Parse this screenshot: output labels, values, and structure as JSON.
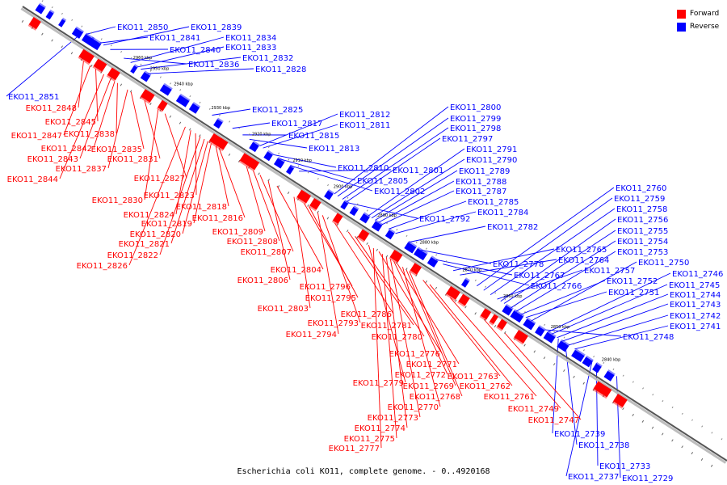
{
  "caption": "Escherichia coli KO11, complete genome. - 0..4920168",
  "legend": {
    "forward_label": "Forward",
    "reverse_label": "Reverse",
    "forward_color": "#ff0000",
    "reverse_color": "#0000ff"
  },
  "ticks": [
    "2960 kbp",
    "2950 kbp",
    "2940 kbp",
    "2930 kbp",
    "2920 kbp",
    "2910 kbp",
    "2900 kbp",
    "2890 kbp",
    "2880 kbp",
    "2870 kbp",
    "2860 kbp",
    "2850 kbp",
    "2840 kbp"
  ],
  "reverse_genes": [
    "EKO11_2851",
    "EKO11_2850",
    "EKO11_2841",
    "EKO11_2840",
    "EKO11_2839",
    "EKO11_2836",
    "EKO11_2834",
    "EKO11_2833",
    "EKO11_2832",
    "EKO11_2828",
    "EKO11_2825",
    "EKO11_2817",
    "EKO11_2815",
    "EKO11_2813",
    "EKO11_2812",
    "EKO11_2811",
    "EKO11_2810",
    "EKO11_2805",
    "EKO11_2802",
    "EKO11_2801",
    "EKO11_2800",
    "EKO11_2799",
    "EKO11_2798",
    "EKO11_2797",
    "EKO11_2792",
    "EKO11_2791",
    "EKO11_2790",
    "EKO11_2789",
    "EKO11_2788",
    "EKO11_2787",
    "EKO11_2785",
    "EKO11_2784",
    "EKO11_2782",
    "EKO11_2778",
    "EKO11_2767",
    "EKO11_2766",
    "EKO11_2765",
    "EKO11_2764",
    "EKO11_2760",
    "EKO11_2759",
    "EKO11_2758",
    "EKO11_2757",
    "EKO11_2756",
    "EKO11_2755",
    "EKO11_2754",
    "EKO11_2753",
    "EKO11_2752",
    "EKO11_2751",
    "EKO11_2750",
    "EKO11_2748",
    "EKO11_2746",
    "EKO11_2745",
    "EKO11_2744",
    "EKO11_2743",
    "EKO11_2742",
    "EKO11_2741",
    "EKO11_2739",
    "EKO11_2738",
    "EKO11_2737",
    "EKO11_2733",
    "EKO11_2729"
  ],
  "forward_genes": [
    "EKO11_2848",
    "EKO11_2847",
    "EKO11_2845",
    "EKO11_2844",
    "EKO11_2843",
    "EKO11_2842",
    "EKO11_2838",
    "EKO11_2837",
    "EKO11_2835",
    "EKO11_2831",
    "EKO11_2830",
    "EKO11_2827",
    "EKO11_2826",
    "EKO11_2824",
    "EKO11_2823",
    "EKO11_2822",
    "EKO11_2821",
    "EKO11_2820",
    "EKO11_2819",
    "EKO11_2818",
    "EKO11_2816",
    "EKO11_2809",
    "EKO11_2808",
    "EKO11_2807",
    "EKO11_2806",
    "EKO11_2804",
    "EKO11_2803",
    "EKO11_2796",
    "EKO11_2795",
    "EKO11_2794",
    "EKO11_2793",
    "EKO11_2786",
    "EKO11_2781",
    "EKO11_2780",
    "EKO11_2779",
    "EKO11_2777",
    "EKO11_2776",
    "EKO11_2775",
    "EKO11_2774",
    "EKO11_2773",
    "EKO11_2772",
    "EKO11_2771",
    "EKO11_2770",
    "EKO11_2769",
    "EKO11_2768",
    "EKO11_2763",
    "EKO11_2762",
    "EKO11_2761",
    "EKO11_2749",
    "EKO11_2747"
  ]
}
